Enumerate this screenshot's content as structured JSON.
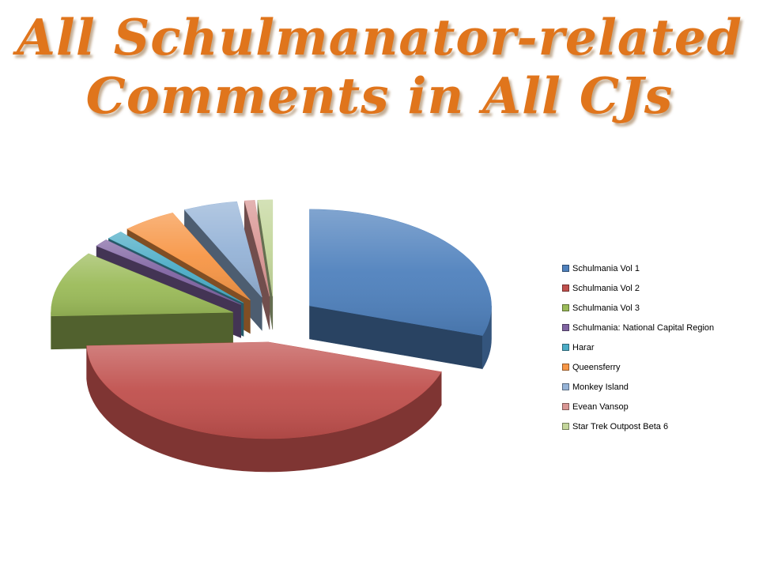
{
  "slide": {
    "background": "#ffffff",
    "title": {
      "lines": [
        "All Schulmanator-related",
        "Comments in All CJs"
      ],
      "color": "#E0751C"
    }
  },
  "chart_data": {
    "type": "pie",
    "style": "3d-exploded",
    "title": "All Schulmanator-related Comments in All CJs",
    "legend_position": "right",
    "data_labels_visible": false,
    "values_are_estimates": true,
    "start_angle": "12 o'clock",
    "direction": "clockwise",
    "categories": [
      "Schulmania Vol 1",
      "Schulmania Vol 2",
      "Schulmania Vol 3",
      "Schulmania: National Capital Region",
      "Harar",
      "Queensferry",
      "Monkey Island",
      "Evean Vansop",
      "Star Trek Outpost Beta 6"
    ],
    "values_percent": [
      30,
      44.4,
      11,
      1.3,
      1.5,
      4.8,
      4.8,
      0.9,
      1.3
    ],
    "colors": [
      "#4F81BD",
      "#C0504D",
      "#9BBB59",
      "#8064A2",
      "#4BACC6",
      "#F79646",
      "#95B3D7",
      "#D99694",
      "#C3D69B"
    ]
  }
}
